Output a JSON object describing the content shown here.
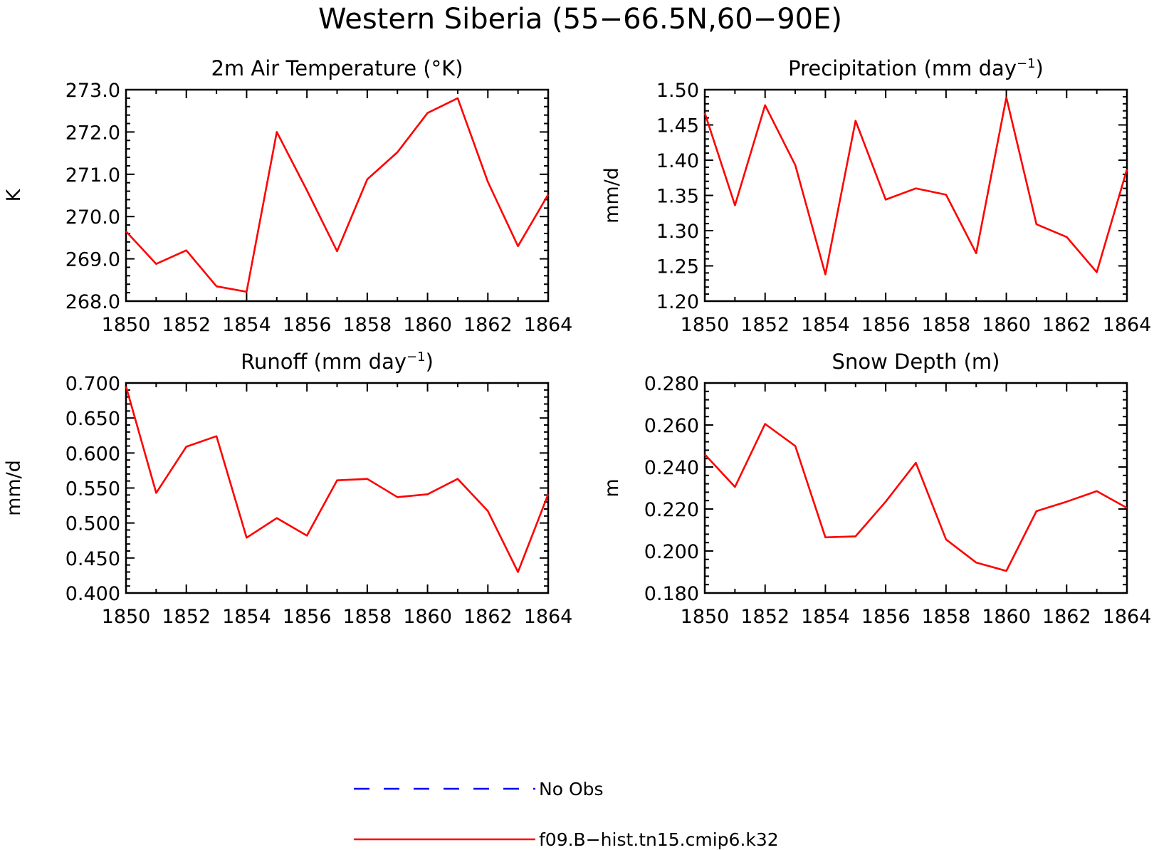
{
  "figure": {
    "title": "Western Siberia (55−66.5N,60−90E)"
  },
  "legend": {
    "placement": "bottom-center",
    "entries": [
      {
        "label": "No Obs",
        "color": "#0000ff",
        "dash": true
      },
      {
        "label": "f09.B−hist.tn15.cmip6.k32",
        "color": "#ff0000",
        "dash": false
      }
    ]
  },
  "chart_data": [
    {
      "type": "line",
      "title": "2m Air Temperature (°K)",
      "ylabel": "K",
      "xlabel": "",
      "xlim": [
        1850,
        1864
      ],
      "ylim": [
        268.0,
        273.0
      ],
      "yticks": [
        "268.0",
        "269.0",
        "270.0",
        "271.0",
        "272.0",
        "273.0"
      ],
      "xticks": [
        "1850",
        "1852",
        "1854",
        "1856",
        "1858",
        "1860",
        "1862",
        "1864"
      ],
      "x": [
        1850,
        1851,
        1852,
        1853,
        1854,
        1855,
        1856,
        1857,
        1858,
        1859,
        1860,
        1861,
        1862,
        1863,
        1864
      ],
      "series": [
        {
          "name": "f09.B−hist.tn15.cmip6.k32",
          "color": "#ff0000",
          "values": [
            269.65,
            268.88,
            269.2,
            268.35,
            268.22,
            272.0,
            270.62,
            269.18,
            270.88,
            271.52,
            272.45,
            272.8,
            270.82,
            269.3,
            270.52
          ]
        }
      ]
    },
    {
      "type": "line",
      "title": "Precipitation (mm day",
      "title_sup": "−1",
      "title_end": ")",
      "ylabel": "mm/d",
      "xlabel": "",
      "xlim": [
        1850,
        1864
      ],
      "ylim": [
        1.2,
        1.5
      ],
      "yticks": [
        "1.20",
        "1.25",
        "1.30",
        "1.35",
        "1.40",
        "1.45",
        "1.50"
      ],
      "xticks": [
        "1850",
        "1852",
        "1854",
        "1856",
        "1858",
        "1860",
        "1862",
        "1864"
      ],
      "x": [
        1850,
        1851,
        1852,
        1853,
        1854,
        1855,
        1856,
        1857,
        1858,
        1859,
        1860,
        1861,
        1862,
        1863,
        1864
      ],
      "series": [
        {
          "name": "f09.B−hist.tn15.cmip6.k32",
          "color": "#ff0000",
          "values": [
            1.467,
            1.336,
            1.478,
            1.393,
            1.238,
            1.456,
            1.344,
            1.36,
            1.351,
            1.268,
            1.489,
            1.309,
            1.291,
            1.241,
            1.387
          ]
        }
      ]
    },
    {
      "type": "line",
      "title": "Runoff (mm day",
      "title_sup": "−1",
      "title_end": ")",
      "ylabel": "mm/d",
      "xlabel": "",
      "xlim": [
        1850,
        1864
      ],
      "ylim": [
        0.4,
        0.7
      ],
      "yticks": [
        "0.400",
        "0.450",
        "0.500",
        "0.550",
        "0.600",
        "0.650",
        "0.700"
      ],
      "xticks": [
        "1850",
        "1852",
        "1854",
        "1856",
        "1858",
        "1860",
        "1862",
        "1864"
      ],
      "x": [
        1850,
        1851,
        1852,
        1853,
        1854,
        1855,
        1856,
        1857,
        1858,
        1859,
        1860,
        1861,
        1862,
        1863,
        1864
      ],
      "series": [
        {
          "name": "f09.B−hist.tn15.cmip6.k32",
          "color": "#ff0000",
          "values": [
            0.695,
            0.543,
            0.609,
            0.624,
            0.479,
            0.507,
            0.482,
            0.561,
            0.563,
            0.537,
            0.541,
            0.563,
            0.517,
            0.43,
            0.541
          ]
        }
      ]
    },
    {
      "type": "line",
      "title": "Snow Depth (m)",
      "ylabel": "m",
      "xlabel": "",
      "xlim": [
        1850,
        1864
      ],
      "ylim": [
        0.18,
        0.28
      ],
      "yticks": [
        "0.180",
        "0.200",
        "0.220",
        "0.240",
        "0.260",
        "0.280"
      ],
      "xticks": [
        "1850",
        "1852",
        "1854",
        "1856",
        "1858",
        "1860",
        "1862",
        "1864"
      ],
      "x": [
        1850,
        1851,
        1852,
        1853,
        1854,
        1855,
        1856,
        1857,
        1858,
        1859,
        1860,
        1861,
        1862,
        1863,
        1864
      ],
      "series": [
        {
          "name": "f09.B−hist.tn15.cmip6.k32",
          "color": "#ff0000",
          "values": [
            0.246,
            0.2305,
            0.2605,
            0.25,
            0.2065,
            0.207,
            0.2235,
            0.242,
            0.2055,
            0.1945,
            0.1905,
            0.219,
            0.2235,
            0.2285,
            0.2205
          ]
        }
      ]
    }
  ]
}
